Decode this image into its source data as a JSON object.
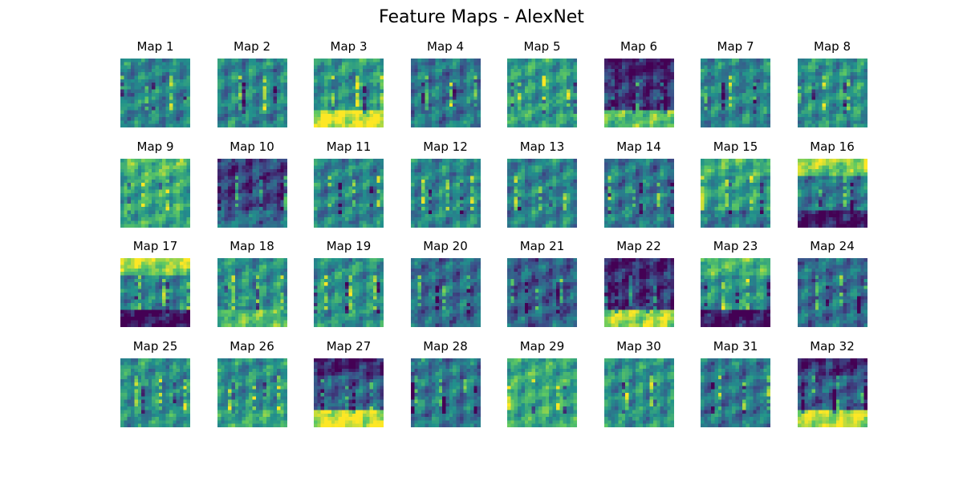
{
  "title": "Feature Maps - AlexNet",
  "maps": [
    {
      "label": "Map 1"
    },
    {
      "label": "Map 2"
    },
    {
      "label": "Map 3"
    },
    {
      "label": "Map 4"
    },
    {
      "label": "Map 5"
    },
    {
      "label": "Map 6"
    },
    {
      "label": "Map 7"
    },
    {
      "label": "Map 8"
    },
    {
      "label": "Map 9"
    },
    {
      "label": "Map 10"
    },
    {
      "label": "Map 11"
    },
    {
      "label": "Map 12"
    },
    {
      "label": "Map 13"
    },
    {
      "label": "Map 14"
    },
    {
      "label": "Map 15"
    },
    {
      "label": "Map 16"
    },
    {
      "label": "Map 17"
    },
    {
      "label": "Map 18"
    },
    {
      "label": "Map 19"
    },
    {
      "label": "Map 20"
    },
    {
      "label": "Map 21"
    },
    {
      "label": "Map 22"
    },
    {
      "label": "Map 23"
    },
    {
      "label": "Map 24"
    },
    {
      "label": "Map 25"
    },
    {
      "label": "Map 26"
    },
    {
      "label": "Map 27"
    },
    {
      "label": "Map 28"
    },
    {
      "label": "Map 29"
    },
    {
      "label": "Map 30"
    },
    {
      "label": "Map 31"
    },
    {
      "label": "Map 32"
    }
  ],
  "colormap": [
    "#440154",
    "#3b528b",
    "#21918c",
    "#5ec962",
    "#fde725"
  ]
}
